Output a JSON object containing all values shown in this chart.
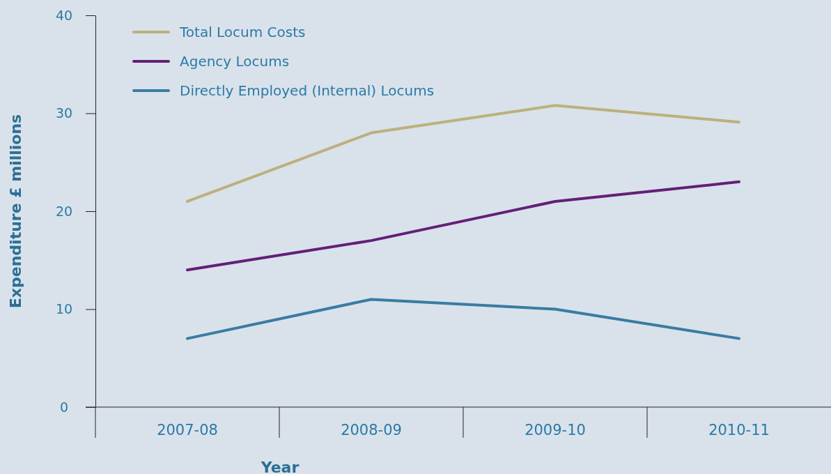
{
  "chart_data": {
    "type": "line",
    "xlabel": "Year",
    "ylabel": "Expenditure £ millions",
    "categories": [
      "2007-08",
      "2008-09",
      "2009-10",
      "2010-11"
    ],
    "series": [
      {
        "name": "Total Locum Costs",
        "color": "#bdb07c",
        "values": [
          21,
          28,
          30.8,
          29.1
        ]
      },
      {
        "name": "Agency Locums",
        "color": "#641f78",
        "values": [
          14,
          17,
          21,
          23
        ]
      },
      {
        "name": "Directly Employed (Internal) Locums",
        "color": "#3a7ba3",
        "values": [
          7,
          11,
          10,
          7
        ]
      }
    ],
    "ylim": [
      0,
      40
    ],
    "yticks": [
      0,
      10,
      20,
      30,
      40
    ],
    "grid": false,
    "legend": "top left",
    "marker": "none",
    "line_style": "solid"
  }
}
